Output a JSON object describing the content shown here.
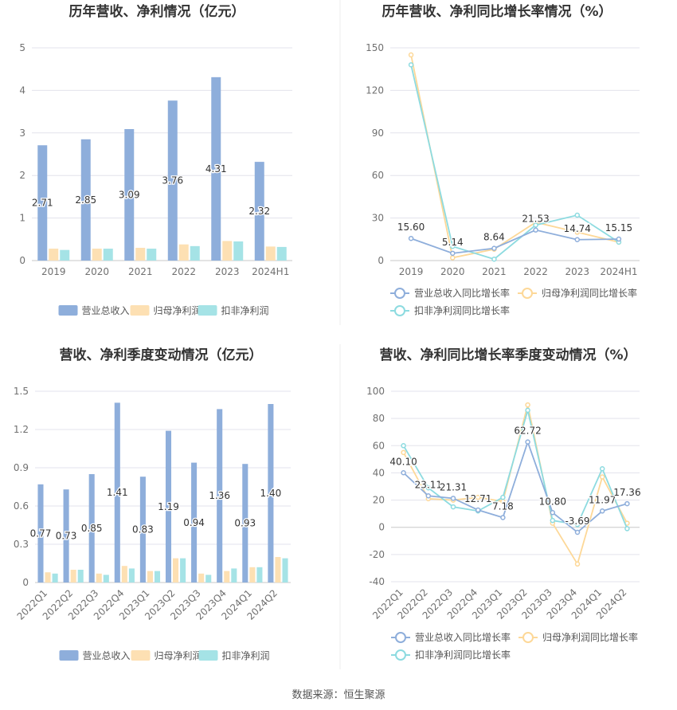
{
  "source": "数据来源：恒生聚源",
  "colors": {
    "revenue": "#8eaedb",
    "net_profit": "#fde0b3",
    "deducted_profit": "#a5e3e6",
    "rev_line": "#8eaedb",
    "np_line": "#fdd898",
    "dp_line": "#8ddbe0",
    "grid": "#e3e3ec",
    "axis_text": "#707070",
    "label_text": "#333333"
  },
  "chart_data": [
    {
      "type": "bar",
      "title": "历年营收、净利情况（亿元）",
      "categories": [
        "2019",
        "2020",
        "2021",
        "2022",
        "2023",
        "2024H1"
      ],
      "ylim": [
        0,
        5
      ],
      "yticks": [
        "0",
        "1",
        "2",
        "3",
        "4",
        "5"
      ],
      "series": [
        {
          "name": "营业总收入",
          "values": [
            2.71,
            2.85,
            3.09,
            3.76,
            4.31,
            2.32
          ],
          "labels": [
            "2.71",
            "2.85",
            "3.09",
            "3.76",
            "4.31",
            "2.32"
          ]
        },
        {
          "name": "归母净利润",
          "values": [
            0.28,
            0.28,
            0.3,
            0.38,
            0.46,
            0.33
          ]
        },
        {
          "name": "扣非净利润",
          "values": [
            0.25,
            0.28,
            0.28,
            0.34,
            0.45,
            0.32
          ]
        }
      ],
      "legend": "bottom"
    },
    {
      "type": "line",
      "title": "历年营收、净利同比增长率情况（%）",
      "categories": [
        "2019",
        "2020",
        "2021",
        "2022",
        "2023",
        "2024H1"
      ],
      "ylim": [
        0,
        150
      ],
      "yticks": [
        "0",
        "30",
        "60",
        "90",
        "120",
        "150"
      ],
      "series": [
        {
          "name": "营业总收入同比增长率",
          "values": [
            15.6,
            5.14,
            8.64,
            21.53,
            14.74,
            15.15
          ],
          "labels": [
            "15.60",
            "5.14",
            "8.64",
            "21.53",
            "14.74",
            "15.15"
          ]
        },
        {
          "name": "归母净利润同比增长率",
          "values": [
            145,
            2,
            8,
            27,
            20,
            13
          ]
        },
        {
          "name": "扣非净利润同比增长率",
          "values": [
            138,
            10,
            1,
            25,
            32,
            13
          ]
        }
      ],
      "legend": "bottom"
    },
    {
      "type": "bar",
      "title": "营收、净利季度变动情况（亿元）",
      "categories": [
        "2022Q1",
        "2022Q2",
        "2022Q3",
        "2022Q4",
        "2023Q1",
        "2023Q2",
        "2023Q3",
        "2023Q4",
        "2024Q1",
        "2024Q2"
      ],
      "ylim": [
        0,
        1.5
      ],
      "yticks": [
        "0",
        "0.3",
        "0.6",
        "0.9",
        "1.2",
        "1.5"
      ],
      "series": [
        {
          "name": "营业总收入",
          "values": [
            0.77,
            0.73,
            0.85,
            1.41,
            0.83,
            1.19,
            0.94,
            1.36,
            0.93,
            1.4
          ],
          "labels": [
            "0.77",
            "0.73",
            "0.85",
            "1.41",
            "0.83",
            "1.19",
            "0.94",
            "1.36",
            "0.93",
            "1.40"
          ]
        },
        {
          "name": "归母净利润",
          "values": [
            0.08,
            0.1,
            0.07,
            0.13,
            0.09,
            0.19,
            0.07,
            0.09,
            0.12,
            0.2
          ]
        },
        {
          "name": "扣非净利润",
          "values": [
            0.07,
            0.1,
            0.06,
            0.11,
            0.09,
            0.19,
            0.06,
            0.11,
            0.12,
            0.19
          ]
        }
      ],
      "legend": "bottom"
    },
    {
      "type": "line",
      "title": "营收、净利同比增长率季度变动情况（%）",
      "categories": [
        "2022Q1",
        "2022Q2",
        "2022Q3",
        "2022Q4",
        "2023Q1",
        "2023Q2",
        "2023Q3",
        "2023Q4",
        "2024Q1",
        "2024Q2"
      ],
      "ylim": [
        -40,
        100
      ],
      "yticks": [
        "-40",
        "-20",
        "0",
        "20",
        "40",
        "60",
        "80",
        "100"
      ],
      "series": [
        {
          "name": "营业总收入同比增长率",
          "values": [
            40.1,
            23.11,
            21.31,
            12.71,
            7.18,
            62.72,
            10.8,
            -3.69,
            11.97,
            17.36
          ],
          "labels": [
            "40.10",
            "23.11",
            "21.31",
            "12.71",
            "7.18",
            "62.72",
            "10.80",
            "-3.69",
            "11.97",
            "17.36"
          ]
        },
        {
          "name": "归母净利润同比增长率",
          "values": [
            55,
            21,
            20,
            22,
            19,
            90,
            3,
            -27,
            37,
            3
          ]
        },
        {
          "name": "扣非净利润同比增长率",
          "values": [
            60,
            29,
            15,
            12,
            22,
            86,
            5,
            2,
            43,
            -1
          ]
        }
      ],
      "legend": "bottom"
    }
  ]
}
